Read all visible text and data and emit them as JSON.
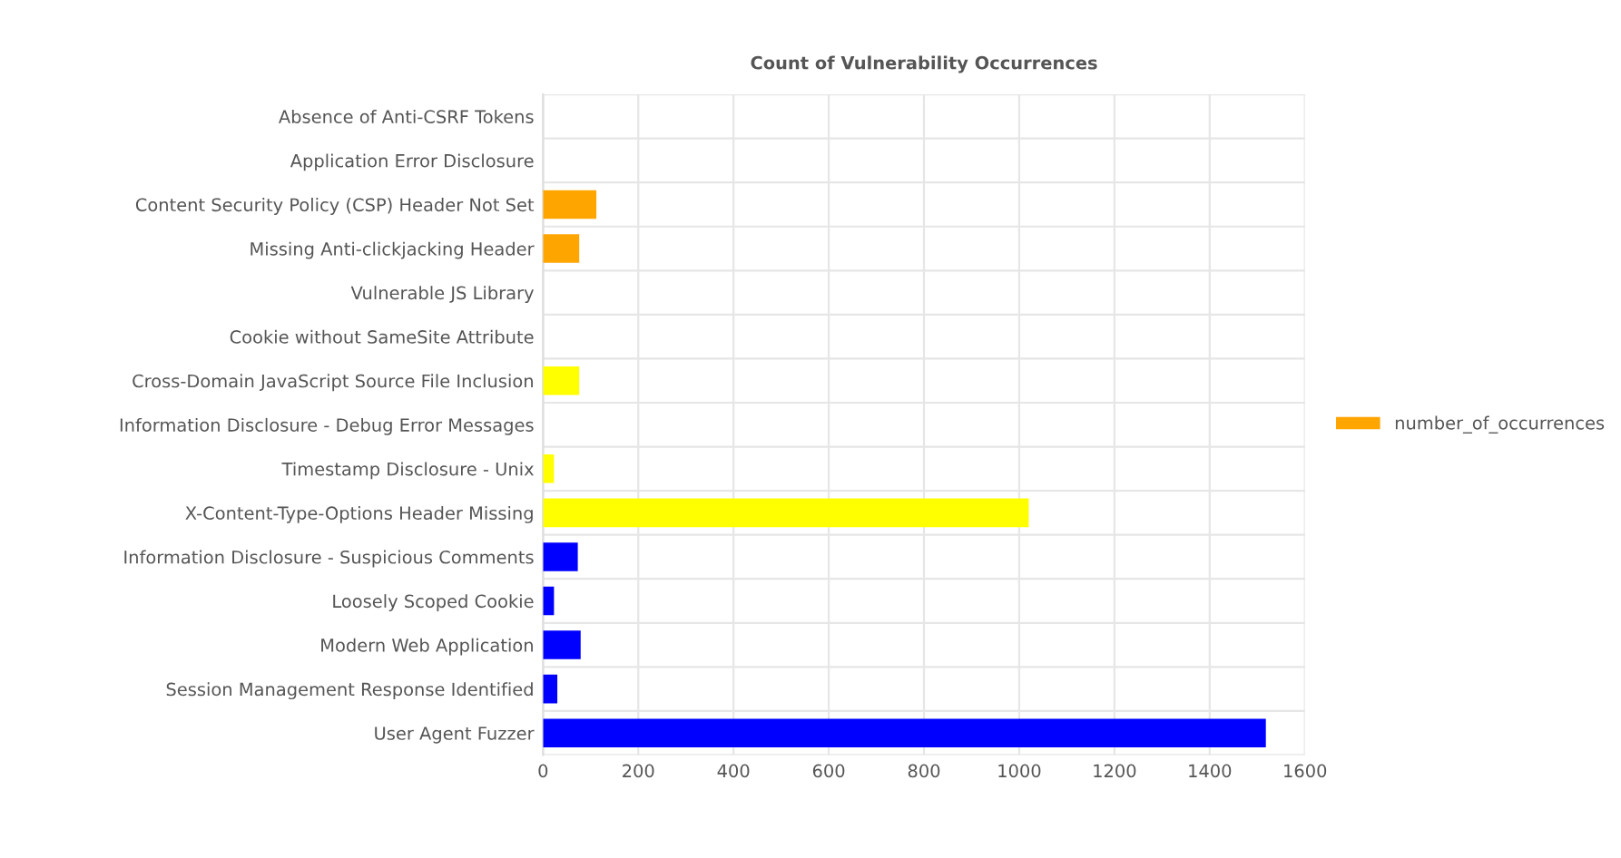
{
  "chart_data": {
    "type": "bar",
    "orientation": "horizontal",
    "title": "Count of Vulnerability Occurrences",
    "categories": [
      "Absence of Anti-CSRF Tokens",
      "Application Error Disclosure",
      "Content Security Policy (CSP) Header Not Set",
      "Missing Anti-clickjacking Header",
      "Vulnerable JS Library",
      "Cookie without SameSite Attribute",
      "Cross-Domain JavaScript Source File Inclusion",
      "Information Disclosure - Debug Error Messages",
      "Timestamp Disclosure - Unix",
      "X-Content-Type-Options Header Missing",
      "Information Disclosure - Suspicious Comments",
      "Loosely Scoped Cookie",
      "Modern Web Application",
      "Session Management Response Identified",
      "User Agent Fuzzer"
    ],
    "series": [
      {
        "name": "number_of_occurrences",
        "color": "#ffa500",
        "values": [
          null,
          null,
          112,
          76,
          null,
          null,
          76,
          null,
          23,
          1020,
          73,
          23,
          79,
          30,
          1518
        ],
        "colors": [
          "#ffa500",
          "#ffa500",
          "#ffa500",
          "#ffa500",
          "#ffff00",
          "#ffff00",
          "#ffff00",
          "#ffff00",
          "#ffff00",
          "#ffff00",
          "#0000ff",
          "#0000ff",
          "#0000ff",
          "#0000ff",
          "#0000ff"
        ]
      }
    ],
    "xlim": [
      0,
      1600
    ],
    "xticks": [
      0,
      200,
      400,
      600,
      800,
      1000,
      1200,
      1400,
      1600
    ],
    "grid": true,
    "legend": "right"
  }
}
